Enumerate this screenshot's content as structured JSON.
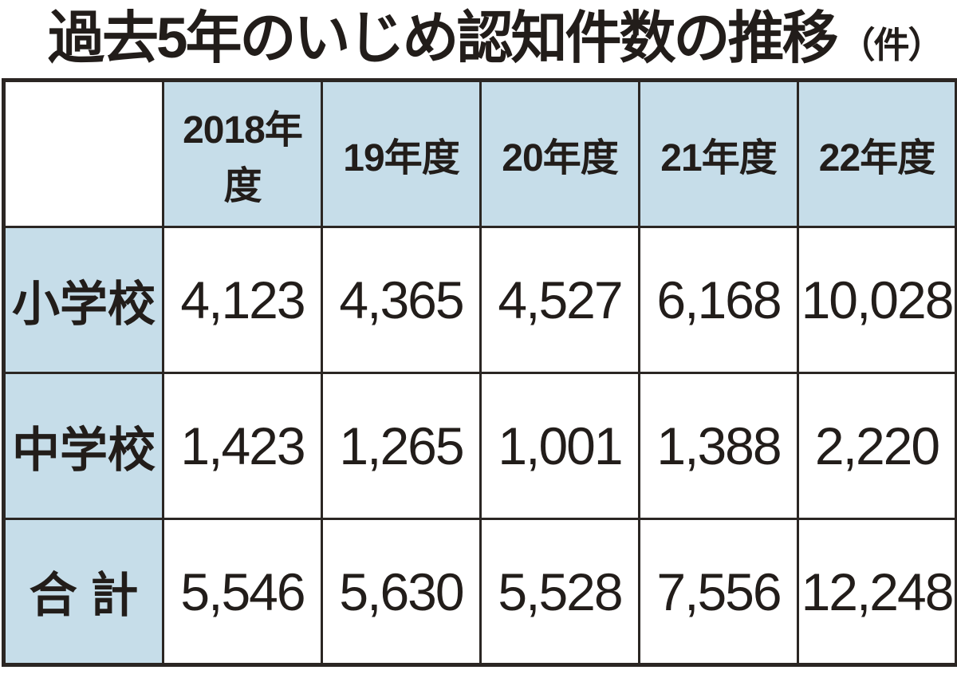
{
  "title": {
    "main": "過去5年のいじめ認知件数の推移",
    "unit": "（件）"
  },
  "table": {
    "corner": "",
    "columns": [
      "2018年度",
      "19年度",
      "20年度",
      "21年度",
      "22年度"
    ],
    "rows": [
      {
        "label": "小学校",
        "values": [
          "4,123",
          "4,365",
          "4,527",
          "6,168",
          "10,028"
        ]
      },
      {
        "label": "中学校",
        "values": [
          "1,423",
          "1,265",
          "1,001",
          "1,388",
          "2,220"
        ]
      },
      {
        "label": "合 計",
        "values": [
          "5,546",
          "5,630",
          "5,528",
          "7,556",
          "12,248"
        ]
      }
    ]
  },
  "colors": {
    "header_fill": "#c6dde9",
    "grid_line": "#2b2623",
    "text": "#221d1a",
    "background": "#ffffff"
  },
  "chart_data": {
    "type": "table",
    "title": "過去5年のいじめ認知件数の推移（件）",
    "unit": "件",
    "categories": [
      "2018年度",
      "19年度",
      "20年度",
      "21年度",
      "22年度"
    ],
    "series": [
      {
        "name": "小学校",
        "values": [
          4123,
          4365,
          4527,
          6168,
          10028
        ]
      },
      {
        "name": "中学校",
        "values": [
          1423,
          1265,
          1001,
          1388,
          2220
        ]
      },
      {
        "name": "合計",
        "values": [
          5546,
          5630,
          5528,
          7556,
          12248
        ]
      }
    ]
  }
}
